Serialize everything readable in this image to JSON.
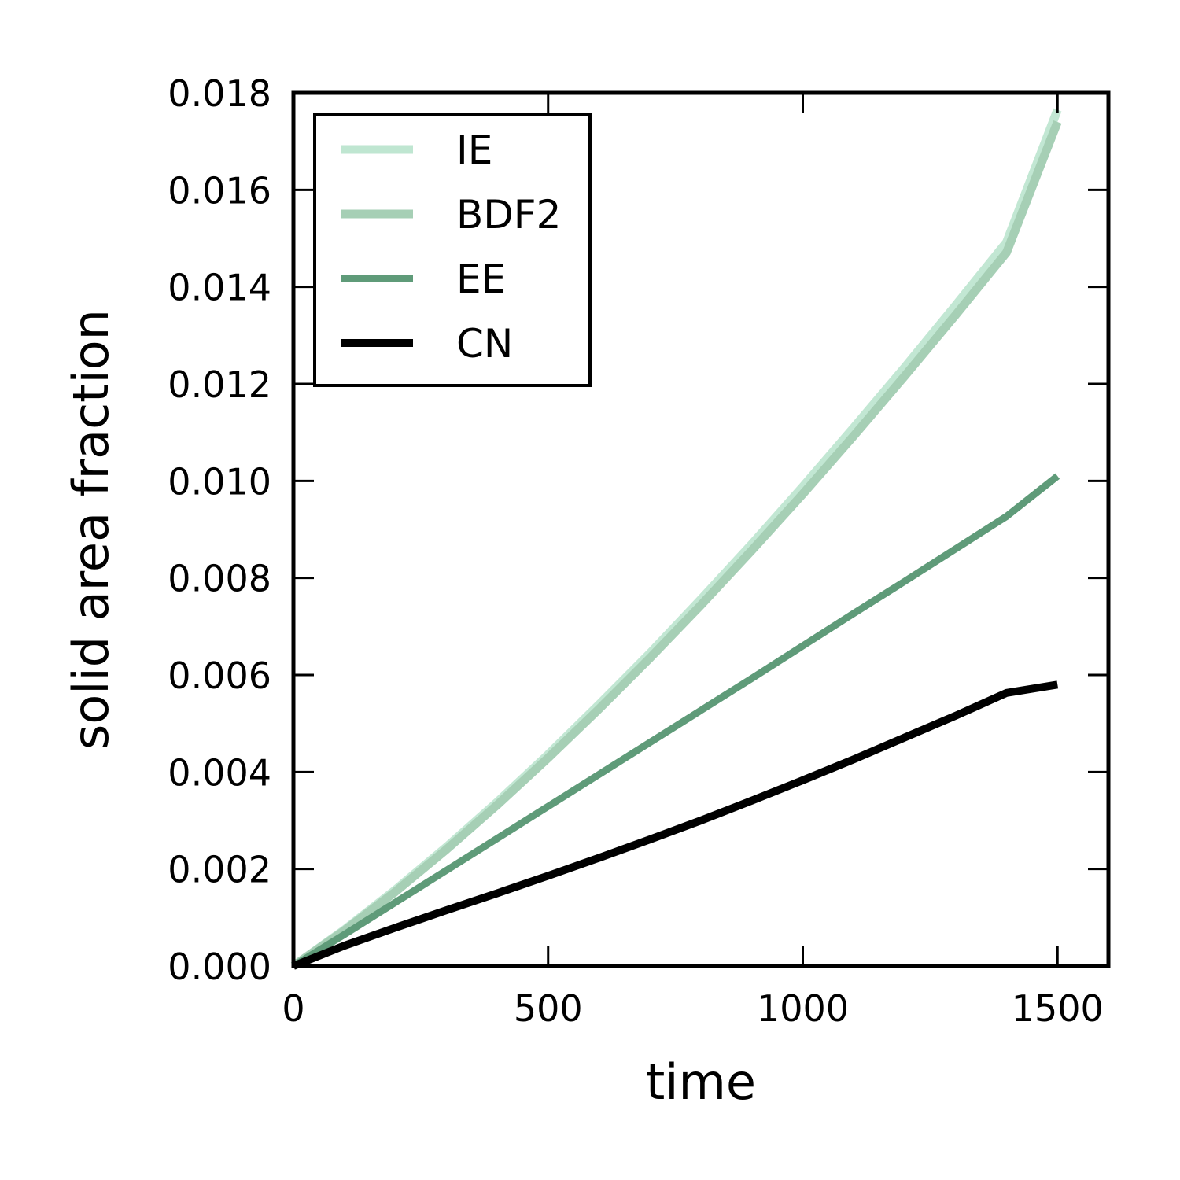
{
  "chart_data": {
    "type": "line",
    "xlabel": "time",
    "ylabel": "solid area fraction",
    "xlim": [
      0,
      1600
    ],
    "ylim": [
      0,
      0.018
    ],
    "xticks": [
      0,
      500,
      1000,
      1500
    ],
    "xtick_labels": [
      "0",
      "500",
      "1000",
      "1500"
    ],
    "yticks": [
      0,
      0.002,
      0.004,
      0.006,
      0.008,
      0.01,
      0.012,
      0.014,
      0.016,
      0.018
    ],
    "ytick_labels": [
      "0.000",
      "0.002",
      "0.004",
      "0.006",
      "0.008",
      "0.010",
      "0.012",
      "0.014",
      "0.016",
      "0.018"
    ],
    "grid": false,
    "legend_position": "top-left",
    "x": [
      0,
      100,
      200,
      300,
      400,
      500,
      600,
      700,
      800,
      900,
      1000,
      1100,
      1200,
      1300,
      1400,
      1500
    ],
    "series": [
      {
        "name": "IE",
        "color": "#bfe6d1",
        "values": [
          0,
          0.00075,
          0.00157,
          0.00245,
          0.00338,
          0.00436,
          0.00539,
          0.00645,
          0.00756,
          0.0087,
          0.00988,
          0.0111,
          0.01234,
          0.01362,
          0.01492,
          0.01765
        ]
      },
      {
        "name": "BDF2",
        "color": "#a6cfb5",
        "values": [
          0,
          0.00073,
          0.00153,
          0.0024,
          0.00332,
          0.00429,
          0.0053,
          0.00635,
          0.00744,
          0.00857,
          0.00973,
          0.01093,
          0.01216,
          0.01342,
          0.01471,
          0.0174
        ]
      },
      {
        "name": "EE",
        "color": "#5f9b79",
        "values": [
          0,
          0.00065,
          0.00131,
          0.00197,
          0.00263,
          0.00329,
          0.00395,
          0.00461,
          0.00527,
          0.00593,
          0.0066,
          0.00727,
          0.00793,
          0.0086,
          0.00927,
          0.0101
        ]
      },
      {
        "name": "CN",
        "color": "#000000",
        "values": [
          0,
          0.00042,
          0.00079,
          0.00115,
          0.0015,
          0.00186,
          0.00223,
          0.00261,
          0.003,
          0.00341,
          0.00383,
          0.00426,
          0.00471,
          0.00516,
          0.00563,
          0.0058
        ]
      }
    ]
  }
}
